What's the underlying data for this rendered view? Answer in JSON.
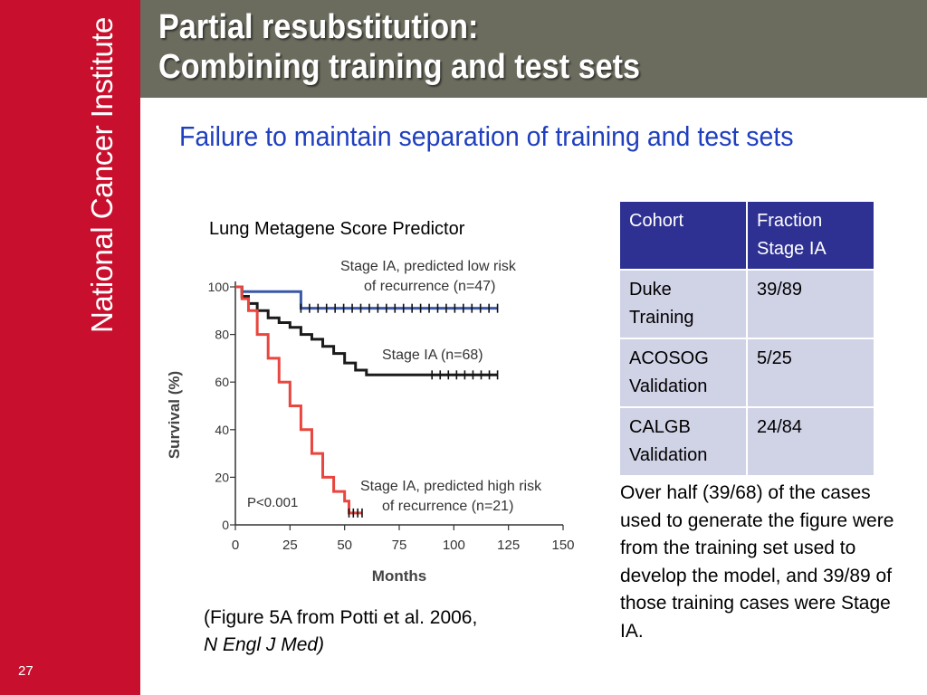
{
  "sidebar": {
    "brand": "National Cancer Institute",
    "slide_number": "27"
  },
  "header": {
    "title_line1": "Partial resubstitution:",
    "title_line2": "Combining training and test sets"
  },
  "subtitle": "Failure to maintain separation of training and test sets",
  "chart_title": "Lung Metagene Score Predictor",
  "chart_data": {
    "type": "line",
    "xlabel": "Months",
    "ylabel": "Survival (%)",
    "xlim": [
      0,
      150
    ],
    "ylim": [
      0,
      100
    ],
    "xticks": [
      "0",
      "25",
      "50",
      "75",
      "100",
      "125",
      "150"
    ],
    "yticks": [
      "0",
      "20",
      "40",
      "60",
      "80",
      "100"
    ],
    "pvalue": "P<0.001",
    "series": [
      {
        "name": "Stage IA, predicted low risk of recurrence (n=47)",
        "label_line1": "Stage IA, predicted low risk",
        "label_line2": "of recurrence (n=47)",
        "color": "#3a58a8",
        "x": [
          0,
          3,
          25,
          30,
          120
        ],
        "y": [
          100,
          98,
          98,
          91,
          91
        ]
      },
      {
        "name": "Stage IA (n=68)",
        "label_line1": "Stage IA (n=68)",
        "label_line2": "",
        "color": "#1a1a1a",
        "x": [
          0,
          3,
          6,
          10,
          15,
          20,
          25,
          30,
          35,
          40,
          45,
          50,
          55,
          60,
          70,
          90,
          120
        ],
        "y": [
          100,
          96,
          93,
          90,
          87,
          85,
          83,
          80,
          78,
          75,
          72,
          68,
          65,
          63,
          63,
          63,
          63
        ]
      },
      {
        "name": "Stage IA, predicted high risk of recurrence (n=21)",
        "label_line1": "Stage IA, predicted high risk",
        "label_line2": "of recurrence (n=21)",
        "color": "#e8463f",
        "x": [
          0,
          3,
          6,
          10,
          15,
          20,
          25,
          30,
          35,
          40,
          45,
          50,
          52,
          58
        ],
        "y": [
          100,
          95,
          90,
          80,
          70,
          60,
          50,
          40,
          30,
          20,
          14,
          10,
          5,
          5
        ]
      }
    ]
  },
  "caption": {
    "line1": "(Figure 5A from Potti et al. 2006,",
    "line2": "N Engl J Med)"
  },
  "table": {
    "headers": [
      [
        "Cohort"
      ],
      [
        "Fraction",
        "Stage IA"
      ]
    ],
    "rows": [
      {
        "cohort": [
          "Duke",
          "Training"
        ],
        "fraction": "39/89"
      },
      {
        "cohort": [
          "ACOSOG",
          "Validation"
        ],
        "fraction": "5/25"
      },
      {
        "cohort": [
          "CALGB",
          "Validation"
        ],
        "fraction": "24/84"
      }
    ]
  },
  "note": "Over half (39/68) of the cases used to generate the figure were from the training set used to develop the model, and 39/89 of those training cases were Stage IA."
}
